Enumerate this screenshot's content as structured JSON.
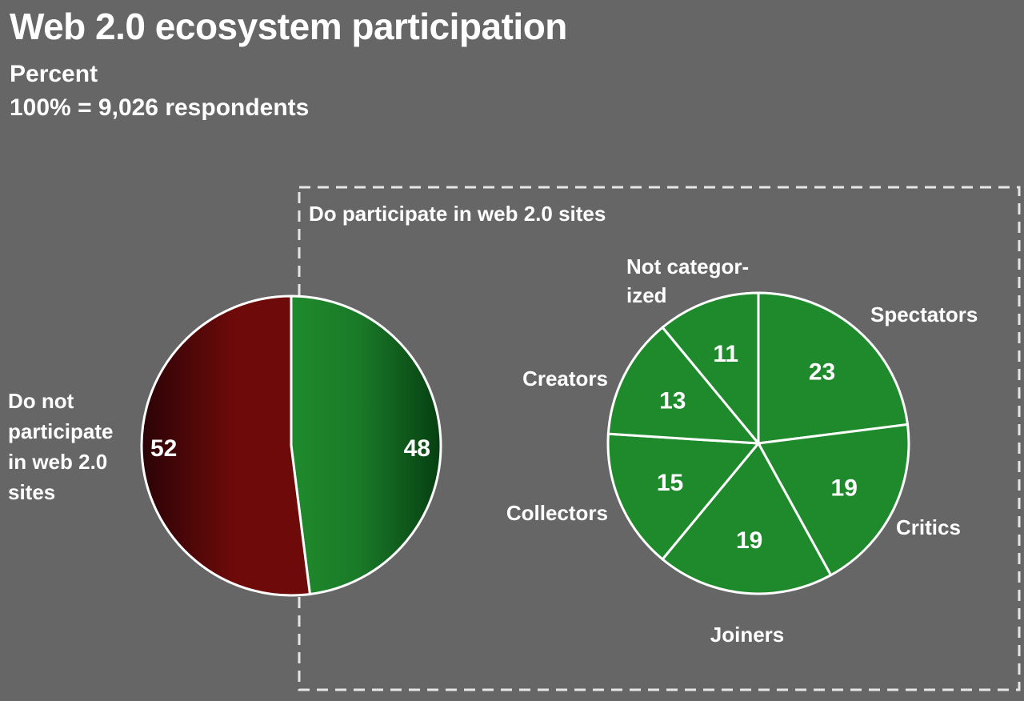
{
  "chart_data": [
    {
      "type": "pie",
      "title": "Web 2.0 ecosystem participation",
      "subtitle": [
        "Percent",
        "100% = 9,026  respondents"
      ],
      "slices": [
        {
          "label": "Do not participate in web 2.0 sites",
          "value": 52,
          "value_label": "52",
          "color": "#6e0a0a"
        },
        {
          "label": "Do participate in web 2.0 sites",
          "value": 48,
          "value_label": "48",
          "color": "#1f8a2c"
        }
      ]
    },
    {
      "type": "pie",
      "title": "Do participate in web 2.0 sites",
      "slices": [
        {
          "label": "Spectators",
          "value": 23,
          "value_label": "23"
        },
        {
          "label": "Critics",
          "value": 19,
          "value_label": "19"
        },
        {
          "label": "Joiners",
          "value": 19,
          "value_label": "19"
        },
        {
          "label": "Collectors",
          "value": 15,
          "value_label": "15"
        },
        {
          "label": "Creators",
          "value": 13,
          "value_label": "13"
        },
        {
          "label": "Not categor-\nized",
          "value": 11,
          "value_label": "11"
        }
      ],
      "color": "#1f8a2c"
    }
  ],
  "texts": {
    "title": "Web 2.0 ecosystem participation",
    "subtitle1": "Percent",
    "subtitle2": "100% = 9,026  respondents",
    "group_label": "Do participate in web 2.0 sites",
    "left_label": "Do not\nparticipate\nin web 2.0\nsites"
  },
  "colors": {
    "background": "#666666",
    "not_participate": "#6e0a0a",
    "participate": "#1f8a2c",
    "stroke": "#ffffff"
  }
}
